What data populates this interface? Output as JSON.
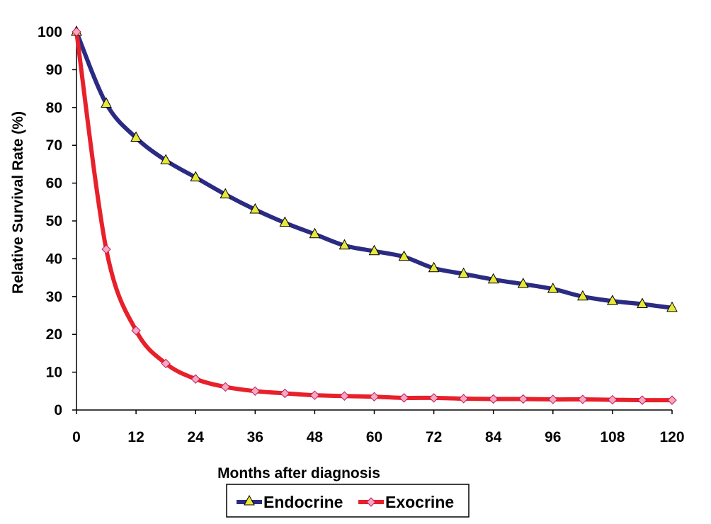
{
  "chart_data": {
    "type": "line",
    "title": "",
    "xlabel": "Months after diagnosis",
    "ylabel": "Relative Survival Rate (%)",
    "xlim": [
      0,
      120
    ],
    "ylim": [
      0,
      100
    ],
    "x_ticks": [
      "0",
      "12",
      "24",
      "36",
      "48",
      "60",
      "72",
      "84",
      "96",
      "108",
      "120"
    ],
    "y_ticks": [
      "0",
      "10",
      "20",
      "30",
      "40",
      "50",
      "60",
      "70",
      "80",
      "90",
      "100"
    ],
    "grid": false,
    "legend_position": "bottom-center",
    "x": [
      0,
      6,
      12,
      18,
      24,
      30,
      36,
      42,
      48,
      54,
      60,
      66,
      72,
      78,
      84,
      90,
      96,
      102,
      108,
      114,
      120
    ],
    "series": [
      {
        "name": "Endocrine",
        "color": "#2b2b83",
        "marker": "triangle",
        "marker_color": "#e8e83a",
        "values": [
          100,
          81,
          72,
          66,
          61.5,
          57,
          53,
          49.5,
          46.5,
          43.5,
          42,
          40.5,
          37.5,
          36,
          34.5,
          33.3,
          32,
          30,
          28.8,
          28,
          27
        ]
      },
      {
        "name": "Exocrine",
        "color": "#e8202a",
        "marker": "diamond",
        "marker_color": "#f5a8c0",
        "values": [
          100,
          42.5,
          21,
          12.3,
          8.2,
          6.1,
          5,
          4.4,
          3.9,
          3.7,
          3.5,
          3.2,
          3.2,
          3,
          2.9,
          2.9,
          2.8,
          2.8,
          2.7,
          2.6,
          2.6
        ]
      }
    ]
  }
}
